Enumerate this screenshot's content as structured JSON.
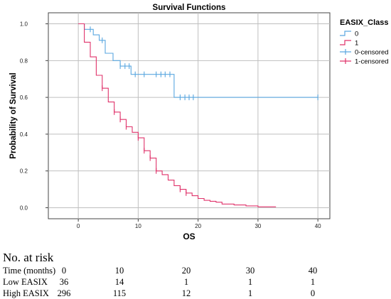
{
  "chart_data": {
    "type": "line",
    "title": "Survival Functions",
    "xlabel": "OS",
    "ylabel": "Probability of Survival",
    "xlim": [
      -5,
      42
    ],
    "ylim": [
      -0.06,
      1.06
    ],
    "x_ticks": [
      0,
      10,
      20,
      30,
      40
    ],
    "x_tick_labels": [
      "0",
      "10",
      "20",
      "30",
      "40"
    ],
    "y_ticks": [
      0.0,
      0.2,
      0.4,
      0.6,
      0.8,
      1.0
    ],
    "y_tick_labels": [
      "0.0",
      "0.2",
      "0.4",
      "0.6",
      "0.8",
      "1.0"
    ],
    "grid": true,
    "legend": {
      "title": "EASIX_Class",
      "placement": "top-right",
      "entries": [
        "0",
        "1",
        "0-censored",
        "1-censored"
      ]
    },
    "colors": {
      "0": "#5aa7e0",
      "1": "#e0336b"
    },
    "series": [
      {
        "name": "0",
        "color": "#5aa7e0",
        "steps": [
          [
            0,
            1.0
          ],
          [
            1.0,
            1.0
          ],
          [
            1.0,
            0.97
          ],
          [
            2.5,
            0.97
          ],
          [
            2.5,
            0.94
          ],
          [
            3.5,
            0.94
          ],
          [
            3.5,
            0.91
          ],
          [
            4.5,
            0.91
          ],
          [
            4.5,
            0.84
          ],
          [
            5.8,
            0.84
          ],
          [
            5.8,
            0.8
          ],
          [
            7.0,
            0.8
          ],
          [
            7.0,
            0.77
          ],
          [
            8.8,
            0.77
          ],
          [
            8.8,
            0.725
          ],
          [
            16.0,
            0.725
          ],
          [
            16.0,
            0.6
          ],
          [
            40.0,
            0.6
          ]
        ],
        "censored": [
          [
            2.0,
            0.97
          ],
          [
            4.0,
            0.91
          ],
          [
            7.0,
            0.77
          ],
          [
            7.8,
            0.77
          ],
          [
            8.5,
            0.77
          ],
          [
            9.5,
            0.725
          ],
          [
            11.0,
            0.725
          ],
          [
            13.0,
            0.725
          ],
          [
            13.8,
            0.725
          ],
          [
            14.5,
            0.725
          ],
          [
            15.3,
            0.725
          ],
          [
            17.0,
            0.6
          ],
          [
            17.8,
            0.6
          ],
          [
            18.5,
            0.6
          ],
          [
            19.2,
            0.6
          ],
          [
            40.0,
            0.6
          ]
        ]
      },
      {
        "name": "1",
        "color": "#e0336b",
        "steps": [
          [
            0,
            1.0
          ],
          [
            1.0,
            1.0
          ],
          [
            1.0,
            0.9
          ],
          [
            2.0,
            0.9
          ],
          [
            2.0,
            0.82
          ],
          [
            3.0,
            0.82
          ],
          [
            3.0,
            0.72
          ],
          [
            4.0,
            0.72
          ],
          [
            4.0,
            0.65
          ],
          [
            5.0,
            0.65
          ],
          [
            5.0,
            0.575
          ],
          [
            6.0,
            0.575
          ],
          [
            6.0,
            0.52
          ],
          [
            7.0,
            0.52
          ],
          [
            7.0,
            0.48
          ],
          [
            8.0,
            0.48
          ],
          [
            8.0,
            0.44
          ],
          [
            9.0,
            0.44
          ],
          [
            9.0,
            0.41
          ],
          [
            10.0,
            0.41
          ],
          [
            10.0,
            0.38
          ],
          [
            11.0,
            0.38
          ],
          [
            11.0,
            0.31
          ],
          [
            12.0,
            0.31
          ],
          [
            12.0,
            0.27
          ],
          [
            13.0,
            0.27
          ],
          [
            13.0,
            0.2
          ],
          [
            14.0,
            0.2
          ],
          [
            14.0,
            0.18
          ],
          [
            15.0,
            0.18
          ],
          [
            15.0,
            0.15
          ],
          [
            16.0,
            0.15
          ],
          [
            16.0,
            0.12
          ],
          [
            17.0,
            0.12
          ],
          [
            17.0,
            0.1
          ],
          [
            18.0,
            0.1
          ],
          [
            18.0,
            0.08
          ],
          [
            19.0,
            0.08
          ],
          [
            19.0,
            0.065
          ],
          [
            20.0,
            0.065
          ],
          [
            20.0,
            0.05
          ],
          [
            21.0,
            0.05
          ],
          [
            21.0,
            0.04
          ],
          [
            22.0,
            0.04
          ],
          [
            22.0,
            0.035
          ],
          [
            23.0,
            0.035
          ],
          [
            23.0,
            0.03
          ],
          [
            24.0,
            0.03
          ],
          [
            24.0,
            0.02
          ],
          [
            26.0,
            0.02
          ],
          [
            26.0,
            0.015
          ],
          [
            28.0,
            0.015
          ],
          [
            28.0,
            0.01
          ],
          [
            30.0,
            0.01
          ],
          [
            30.0,
            0.005
          ],
          [
            33.0,
            0.005
          ]
        ],
        "censored": [
          [
            4.0,
            0.65
          ],
          [
            6.0,
            0.52
          ],
          [
            7.0,
            0.48
          ],
          [
            8.0,
            0.44
          ],
          [
            10.0,
            0.38
          ],
          [
            11.0,
            0.31
          ],
          [
            12.0,
            0.27
          ],
          [
            13.0,
            0.2
          ],
          [
            17.0,
            0.1
          ],
          [
            18.0,
            0.08
          ]
        ]
      }
    ]
  },
  "risk_table": {
    "title": "No. at risk",
    "rows": [
      {
        "label": "Time (months)",
        "values": [
          "0",
          "10",
          "20",
          "30",
          "40"
        ]
      },
      {
        "label": "Low EASIX",
        "values": [
          "36",
          "14",
          "1",
          "1",
          "1"
        ]
      },
      {
        "label": "High EASIX",
        "values": [
          "296",
          "115",
          "12",
          "1",
          "0"
        ]
      }
    ]
  }
}
